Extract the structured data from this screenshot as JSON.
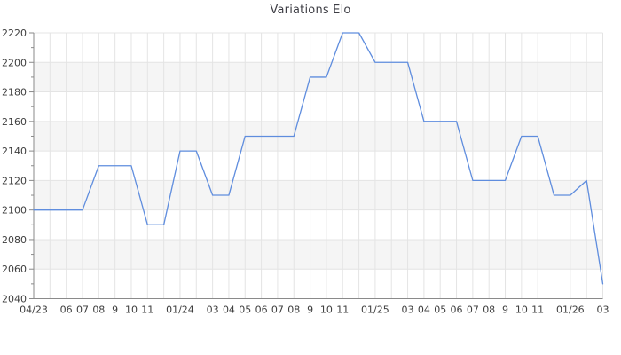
{
  "chart_data": {
    "type": "line",
    "title": "Variations Elo",
    "x_labels": [
      "04/23",
      "",
      "06",
      "07",
      "08",
      "9",
      "10",
      "11",
      "",
      "01/24",
      "",
      "03",
      "04",
      "05",
      "06",
      "07",
      "08",
      "9",
      "10",
      "11",
      "",
      "01/25",
      "",
      "03",
      "04",
      "05",
      "06",
      "07",
      "08",
      "9",
      "10",
      "11",
      "",
      "01/26",
      "",
      "03"
    ],
    "values": [
      2100,
      2100,
      2100,
      2100,
      2130,
      2130,
      2130,
      2090,
      2090,
      2140,
      2140,
      2110,
      2110,
      2150,
      2150,
      2150,
      2150,
      2190,
      2190,
      2220,
      2220,
      2200,
      2200,
      2200,
      2160,
      2160,
      2160,
      2120,
      2120,
      2120,
      2150,
      2150,
      2110,
      2110,
      2120,
      2050
    ],
    "y_tick_labels": [
      "2040",
      "2060",
      "2080",
      "2100",
      "2120",
      "2140",
      "2160",
      "2180",
      "2200",
      "2220"
    ],
    "ylim": [
      2040,
      2220
    ],
    "ytick_step": 20,
    "yminor_tick_step": 10,
    "grid": "on",
    "legend": "none",
    "colors": {
      "line": "#5f8dde",
      "band": "#f5f5f5",
      "grid": "#e4e4e4",
      "axis": "#8a8a8a",
      "text": "#3d3d3d"
    }
  }
}
